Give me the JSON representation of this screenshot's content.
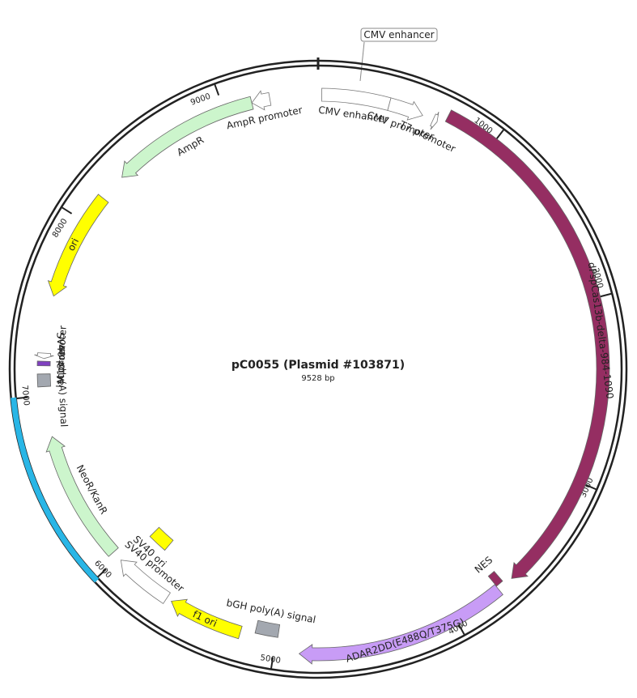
{
  "map": {
    "title": "pC0055 (Plasmid #103871)",
    "length_bp": {
      "value": 9528,
      "label": "9528 bp"
    },
    "ticks": [
      1000,
      2000,
      3000,
      4000,
      5000,
      6000,
      7000,
      8000,
      9000
    ],
    "callout": "CMV enhancer",
    "regions": [
      {
        "start": 5990,
        "end": 7005,
        "color": "#29b6e6"
      }
    ],
    "features": [
      {
        "name": "CMV enhancer",
        "start": 20,
        "end": 398,
        "direction": "none",
        "color": "#ffffff"
      },
      {
        "name": "CMV promoter",
        "start": 398,
        "end": 593,
        "direction": "forward",
        "color": "#ffffff"
      },
      {
        "name": "T7 promoter",
        "start": 655,
        "end": 680,
        "direction": "forward",
        "color": "#ffffff"
      },
      {
        "name": "dPspCas13b-delta-984-1090",
        "start": 720,
        "end": 3632,
        "direction": "forward",
        "color": "#952e62"
      },
      {
        "name": "NES",
        "start": 3677,
        "end": 3720,
        "direction": "none",
        "color": "#952e62"
      },
      {
        "name": "ADAR2DD(E488Q/T375G)",
        "start": 3722,
        "end": 4865,
        "direction": "forward",
        "color": "#c89cf6"
      },
      {
        "name": "bGH poly(A) signal",
        "start": 4990,
        "end": 5120,
        "direction": "none",
        "color": "#a3a8b0"
      },
      {
        "name": "f1 ori",
        "start": 5200,
        "end": 5620,
        "direction": "forward",
        "color": "#ffff00"
      },
      {
        "name": "SV40 promoter",
        "start": 5650,
        "end": 5980,
        "direction": "forward",
        "color": "#ffffff"
      },
      {
        "name": "SV40 ori",
        "start": 5830,
        "end": 5960,
        "direction": "none",
        "color": "#ffff00"
      },
      {
        "name": "NeoR/KanR",
        "start": 6040,
        "end": 6770,
        "direction": "forward",
        "color": "#ccf5cc"
      },
      {
        "name": "SV40 poly(A) signal",
        "start": 7050,
        "end": 7120,
        "direction": "none",
        "color": "#a3a8b0"
      },
      {
        "name": "M13 rev",
        "start": 7165,
        "end": 7190,
        "direction": "none",
        "color": "#8040c0"
      },
      {
        "name": "lac promoter",
        "start": 7205,
        "end": 7235,
        "direction": "reverse",
        "color": "#ffffff"
      },
      {
        "name": "ori",
        "start": 7555,
        "end": 8165,
        "direction": "reverse",
        "color": "#ffff00"
      },
      {
        "name": "AmpR",
        "start": 8320,
        "end": 9158,
        "direction": "reverse",
        "color": "#ccf5cc"
      },
      {
        "name": "AmpR promoter",
        "start": 9158,
        "end": 9260,
        "direction": "reverse",
        "color": "#ffffff"
      }
    ]
  }
}
